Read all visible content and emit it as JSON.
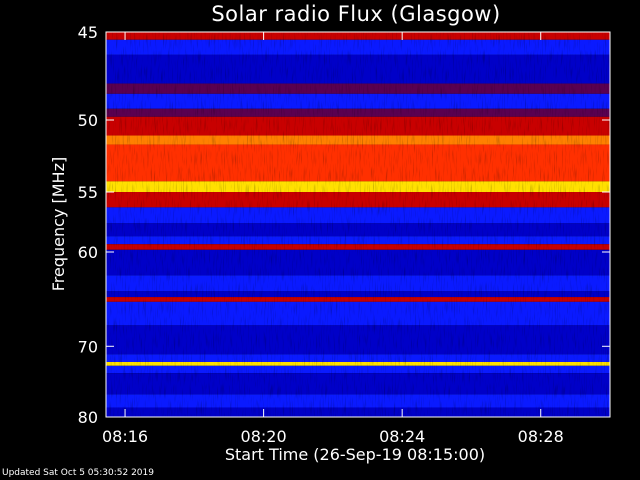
{
  "chart_data": {
    "type": "heatmap",
    "title": "Solar radio Flux (Glasgow)",
    "xlabel": "Start Time (26-Sep-19 08:15:00)",
    "ylabel": "Frequency [MHz]",
    "x_ticks": [
      "08:16",
      "08:20",
      "08:24",
      "08:28"
    ],
    "x_tick_minutes": [
      1,
      5,
      9,
      13
    ],
    "xlim_minutes": [
      0.45,
      15.0
    ],
    "y_ticks": [
      45,
      50,
      55,
      60,
      70,
      80
    ],
    "ylim": [
      45,
      80
    ],
    "y_scale": "reciprocal",
    "colormap": [
      "#0000c8",
      "#0a1aff",
      "#5a0050",
      "#c80000",
      "#ff3000",
      "#ff8000",
      "#ffe000",
      "#ffffff"
    ],
    "bands": [
      {
        "from": 45.0,
        "to": 45.4,
        "level": 3
      },
      {
        "from": 45.4,
        "to": 46.2,
        "level": 1
      },
      {
        "from": 46.2,
        "to": 47.8,
        "level": 0
      },
      {
        "from": 47.8,
        "to": 48.4,
        "level": 2
      },
      {
        "from": 48.4,
        "to": 49.3,
        "level": 1
      },
      {
        "from": 49.3,
        "to": 49.8,
        "level": 2
      },
      {
        "from": 49.8,
        "to": 51.0,
        "level": 3
      },
      {
        "from": 51.0,
        "to": 51.6,
        "level": 5
      },
      {
        "from": 51.6,
        "to": 54.2,
        "level": 4
      },
      {
        "from": 54.2,
        "to": 55.0,
        "level": 6
      },
      {
        "from": 55.0,
        "to": 56.2,
        "level": 3
      },
      {
        "from": 56.2,
        "to": 57.5,
        "level": 1
      },
      {
        "from": 57.5,
        "to": 58.6,
        "level": 0
      },
      {
        "from": 58.6,
        "to": 59.3,
        "level": 1
      },
      {
        "from": 59.3,
        "to": 59.8,
        "level": 3
      },
      {
        "from": 59.8,
        "to": 62.2,
        "level": 0
      },
      {
        "from": 62.2,
        "to": 63.8,
        "level": 1
      },
      {
        "from": 63.8,
        "to": 64.4,
        "level": 0
      },
      {
        "from": 64.4,
        "to": 64.9,
        "level": 3
      },
      {
        "from": 64.9,
        "to": 67.5,
        "level": 1
      },
      {
        "from": 67.5,
        "to": 71.0,
        "level": 0
      },
      {
        "from": 71.0,
        "to": 72.0,
        "level": 1
      },
      {
        "from": 72.0,
        "to": 72.5,
        "level": 6
      },
      {
        "from": 72.5,
        "to": 73.5,
        "level": 1
      },
      {
        "from": 73.5,
        "to": 76.5,
        "level": 0
      },
      {
        "from": 76.5,
        "to": 78.5,
        "level": 1
      },
      {
        "from": 78.5,
        "to": 80.0,
        "level": 0
      }
    ]
  },
  "footer": {
    "updated": "Updated Sat Oct  5 05:30:52 2019"
  }
}
